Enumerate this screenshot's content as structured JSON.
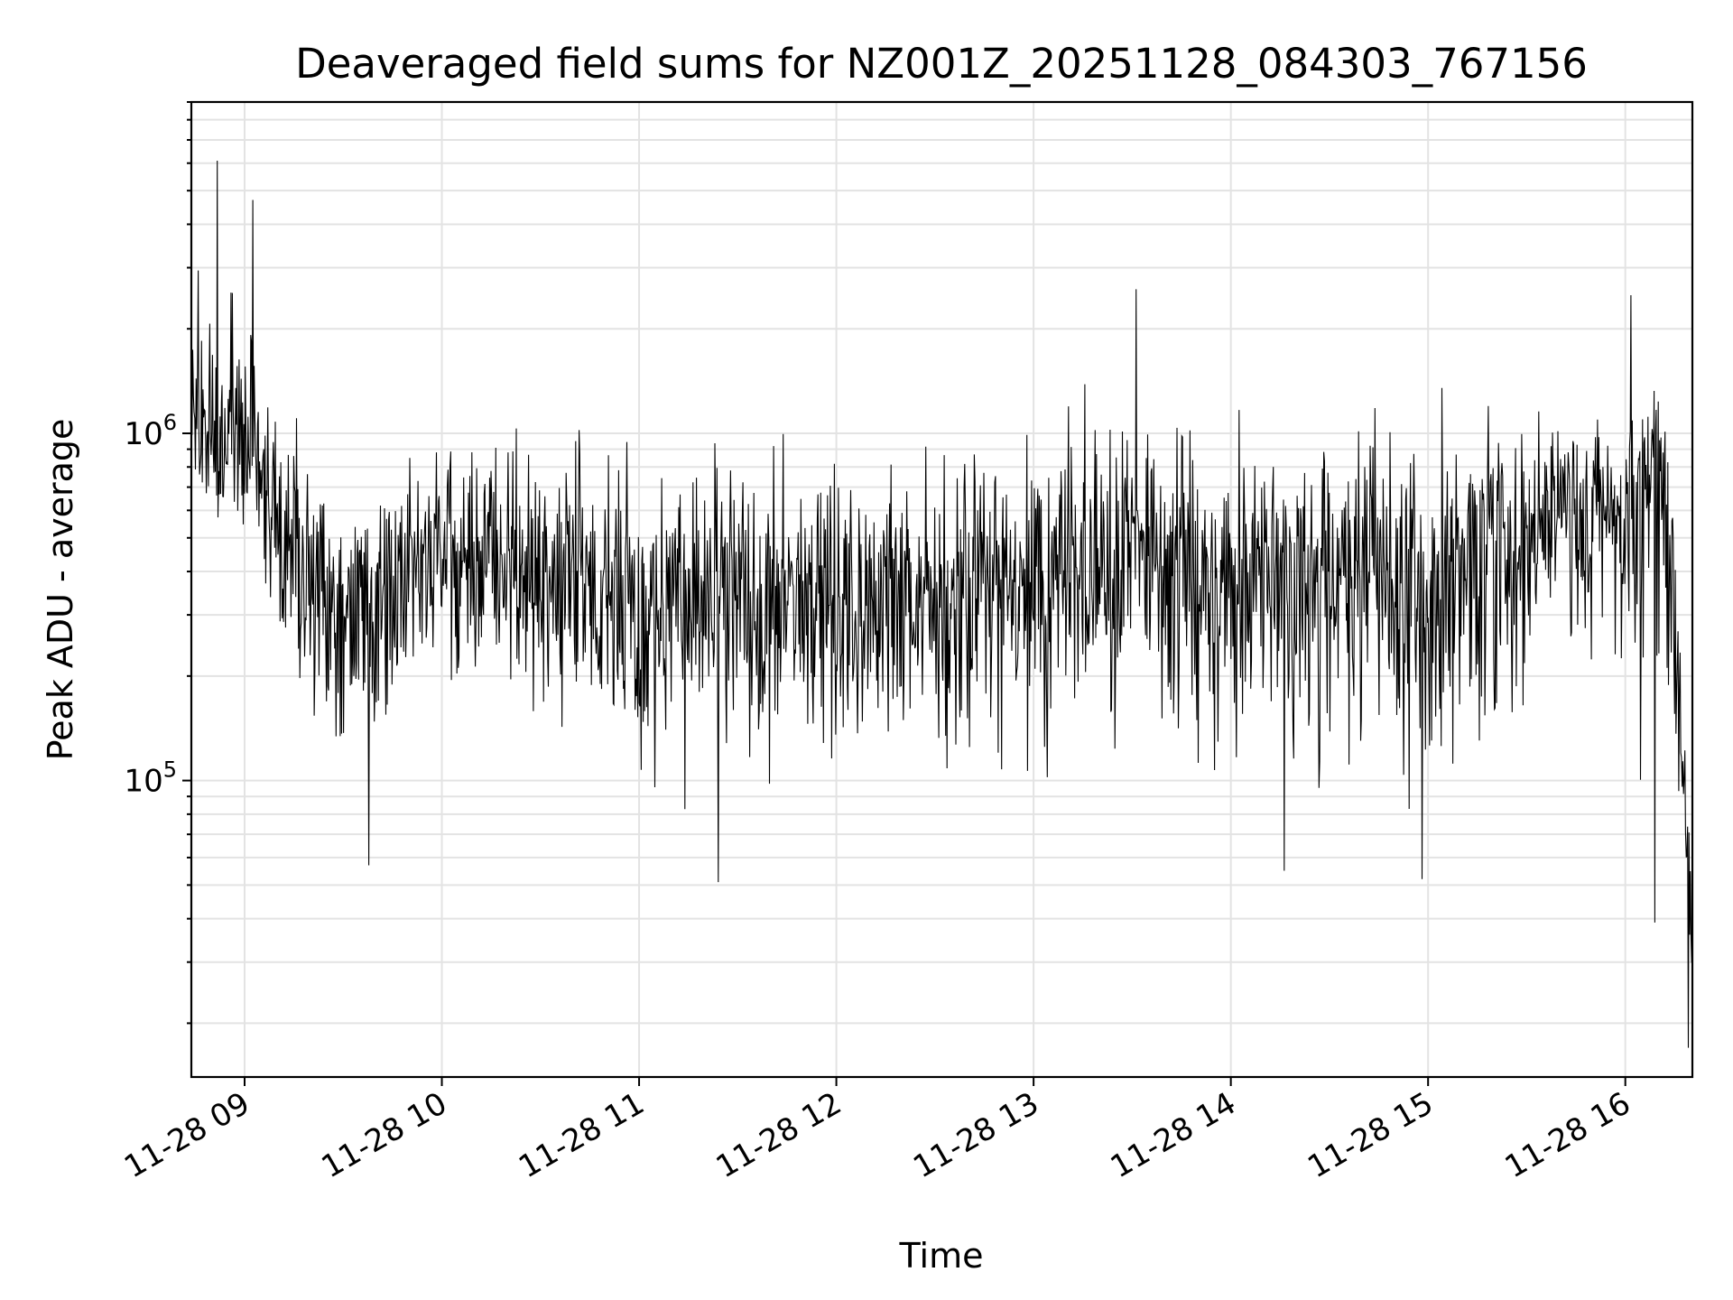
{
  "chart_data": {
    "type": "line",
    "title": "Deaveraged field sums for NZ001Z_20251128_084303_767156",
    "xlabel": "Time",
    "ylabel": "Peak ADU - average",
    "y_scale": "log",
    "ylim": [
      14000,
      9000000
    ],
    "xlim": [
      8.73,
      16.34
    ],
    "x_tick_values": [
      9,
      10,
      11,
      12,
      13,
      14,
      15,
      16
    ],
    "x_tick_labels": [
      "11-28 09",
      "11-28 10",
      "11-28 11",
      "11-28 12",
      "11-28 13",
      "11-28 14",
      "11-28 15",
      "11-28 16"
    ],
    "y_major_ticks": [
      {
        "value": 100000,
        "base": "10",
        "exp": "5"
      },
      {
        "value": 1000000,
        "base": "10",
        "exp": "6"
      }
    ],
    "grid": true,
    "series": [
      {
        "name": "Peak ADU - average",
        "color": "#000000",
        "sample_count": 2200,
        "envelope_hours": [
          8.73,
          8.85,
          9.0,
          9.25,
          9.5,
          10.0,
          11.0,
          12.0,
          13.0,
          13.5,
          14.0,
          14.5,
          15.0,
          15.5,
          16.0,
          16.15,
          16.22,
          16.27,
          16.34
        ],
        "upper_envelope": [
          4000000,
          5500000,
          4000000,
          1800000,
          900000,
          1400000,
          1300000,
          1400000,
          1500000,
          2500000,
          1400000,
          1600000,
          1500000,
          1700000,
          1300000,
          2300000,
          1700000,
          500000,
          100000
        ],
        "typical_level": [
          1000000,
          1000000,
          900000,
          450000,
          300000,
          450000,
          320000,
          330000,
          350000,
          450000,
          380000,
          380000,
          400000,
          550000,
          600000,
          850000,
          500000,
          150000,
          45000
        ],
        "lower_envelope": [
          500000,
          450000,
          380000,
          110000,
          70000,
          130000,
          55000,
          60000,
          65000,
          95000,
          60000,
          55000,
          60000,
          90000,
          150000,
          40000,
          90000,
          70000,
          18000
        ],
        "notable_points": [
          {
            "x": 8.86,
            "y": 6100000
          },
          {
            "x": 9.04,
            "y": 4700000
          },
          {
            "x": 9.63,
            "y": 57000
          },
          {
            "x": 11.4,
            "y": 51000
          },
          {
            "x": 13.52,
            "y": 2600000
          },
          {
            "x": 14.27,
            "y": 55000
          },
          {
            "x": 14.97,
            "y": 52000
          },
          {
            "x": 16.03,
            "y": 2500000
          },
          {
            "x": 16.15,
            "y": 39000
          },
          {
            "x": 16.32,
            "y": 17000
          }
        ]
      }
    ]
  }
}
